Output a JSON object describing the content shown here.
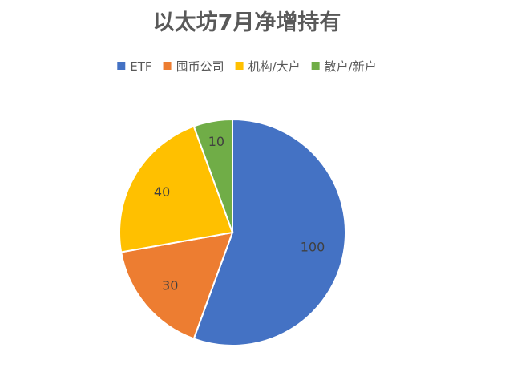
{
  "chart_data": {
    "type": "pie",
    "title": "以太坊7月净增持有",
    "categories": [
      "ETF",
      "囤币公司",
      "机构/大户",
      "散户/新户"
    ],
    "values": [
      100,
      30,
      40,
      10
    ],
    "colors": [
      "#4472C4",
      "#ED7D31",
      "#FFC000",
      "#70AD47"
    ],
    "legend": "top",
    "start_angle_deg": 0,
    "direction": "clockwise"
  }
}
